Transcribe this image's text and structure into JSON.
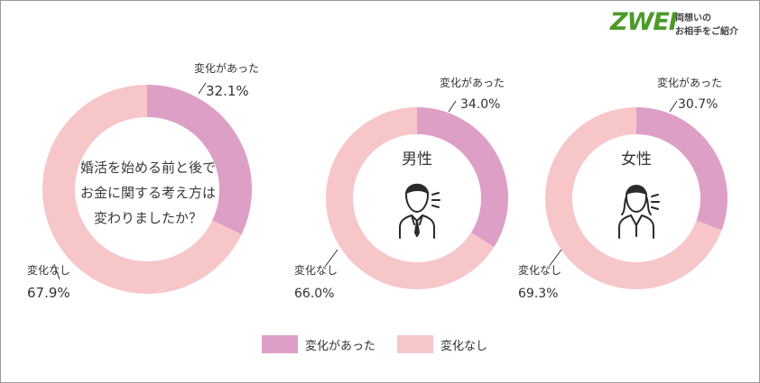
{
  "brand": {
    "logo_text": "ZWEI",
    "tagline_lines": [
      "両想いの",
      "お相手をご紹介"
    ]
  },
  "question_lines": [
    "婚活を始める前と後で",
    "お金に関する考え方は",
    "変わりましたか？"
  ],
  "colors": {
    "changed": "#de9fc6",
    "unchanged": "#f7c6c9",
    "text": "#333333"
  },
  "legend": [
    {
      "label": "変化があった",
      "color": "#de9fc6"
    },
    {
      "label": "変化なし",
      "color": "#f7c6c9"
    }
  ],
  "chart_data": [
    {
      "type": "pie",
      "variant": "donut",
      "center_label": "",
      "center_icon": "question-text",
      "slices": [
        {
          "label": "変化があった",
          "value": 32.1,
          "value_label": "32.1%",
          "color": "#de9fc6"
        },
        {
          "label": "変化なし",
          "value": 67.9,
          "value_label": "67.9%",
          "color": "#f7c6c9"
        }
      ]
    },
    {
      "type": "pie",
      "variant": "donut",
      "center_label": "男性",
      "center_icon": "man-speaking-icon",
      "slices": [
        {
          "label": "変化があった",
          "value": 34.0,
          "value_label": "34.0%",
          "color": "#de9fc6"
        },
        {
          "label": "変化なし",
          "value": 66.0,
          "value_label": "66.0%",
          "color": "#f7c6c9"
        }
      ]
    },
    {
      "type": "pie",
      "variant": "donut",
      "center_label": "女性",
      "center_icon": "woman-speaking-icon",
      "slices": [
        {
          "label": "変化があった",
          "value": 30.7,
          "value_label": "30.7%",
          "color": "#de9fc6"
        },
        {
          "label": "変化なし",
          "value": 69.3,
          "value_label": "69.3%",
          "color": "#f7c6c9"
        }
      ]
    }
  ]
}
